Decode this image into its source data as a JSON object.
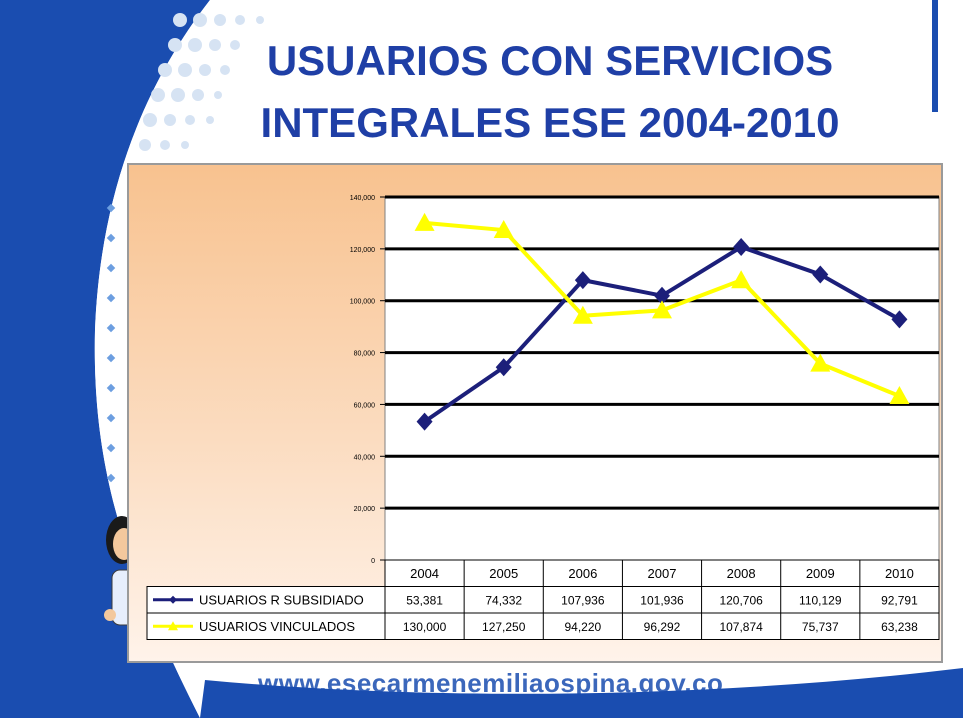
{
  "title": {
    "line1": "USUARIOS CON SERVICIOS",
    "line2": "INTEGRALES ESE 2004-2010"
  },
  "footer_url": "www.esecarmenemiliaospina.gov.co",
  "colors": {
    "title": "#1f3fa6",
    "series_subsidiado": "#1c1f7a",
    "series_vinculados": "#ffff00",
    "background_blue": "#1a4db0"
  },
  "chart_data": {
    "type": "line",
    "title": "",
    "xlabel": "",
    "ylabel": "",
    "categories": [
      "2004",
      "2005",
      "2006",
      "2007",
      "2008",
      "2009",
      "2010"
    ],
    "ylim": [
      0,
      140000
    ],
    "yticks": [
      0,
      20000,
      40000,
      60000,
      80000,
      100000,
      120000,
      140000
    ],
    "ytick_labels": [
      "0",
      "20,000",
      "40,000",
      "60,000",
      "80,000",
      "100,000",
      "120,000",
      "140,000"
    ],
    "grid": true,
    "legend": "data-table-below",
    "series": [
      {
        "name": "USUARIOS R SUBSIDIADO",
        "marker": "diamond",
        "values": [
          53381,
          74332,
          107936,
          101936,
          120706,
          110129,
          92791
        ],
        "labels": [
          "53,381",
          "74,332",
          "107,936",
          "101,936",
          "120,706",
          "110,129",
          "92,791"
        ]
      },
      {
        "name": "USUARIOS VINCULADOS",
        "marker": "triangle",
        "values": [
          130000,
          127250,
          94220,
          96292,
          107874,
          75737,
          63238
        ],
        "labels": [
          "130,000",
          "127,250",
          "94,220",
          "96,292",
          "107,874",
          "75,737",
          "63,238"
        ]
      }
    ]
  }
}
